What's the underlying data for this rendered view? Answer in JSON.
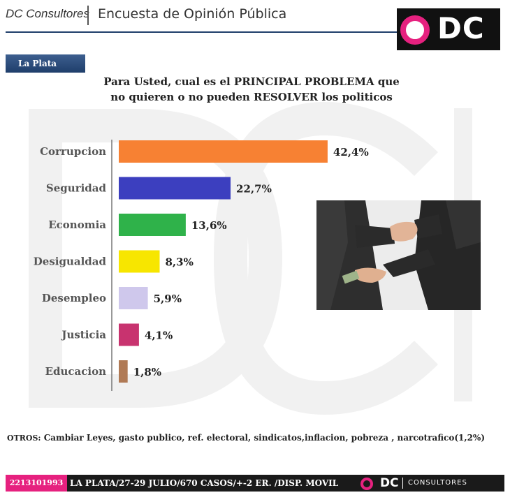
{
  "header": {
    "brand": "DC Consultores",
    "title": "Encuesta de Opinión Pública"
  },
  "logo": {
    "text": "DC"
  },
  "region": "La Plata",
  "question": {
    "line1": "Para Usted, cual es el PRINCIPAL PROBLEMA que",
    "line2": "no quieren o no pueden RESOLVER los politicos"
  },
  "colors": {
    "accent": "#e6217f",
    "navy": "#1f3e6b"
  },
  "chart_data": {
    "type": "bar",
    "orientation": "horizontal",
    "categories": [
      "Corrupcion",
      "Seguridad",
      "Economia",
      "Desigualdad",
      "Desempleo",
      "Justicia",
      "Educacion"
    ],
    "values": [
      42.4,
      22.7,
      13.6,
      8.3,
      5.9,
      4.1,
      1.8
    ],
    "value_labels": [
      "42,4%",
      "22,7%",
      "13,6%",
      "8,3%",
      "5,9%",
      "4,1%",
      "1,8%"
    ],
    "colors": [
      "#f78133",
      "#3c3fbf",
      "#2fb24a",
      "#f7e600",
      "#cfc8ec",
      "#c8336f",
      "#b07a55"
    ],
    "title": "",
    "xlabel": "",
    "ylabel": "",
    "grid": false,
    "legend": "none"
  },
  "others": {
    "label": "OTROS:",
    "text": "Cambiar Leyes, gasto publico, ref. electoral, sindicatos,inflacion, pobreza , narcotrafico(1,2%)"
  },
  "footer": {
    "phone": "2213101993",
    "info": "LA PLATA/27-29 JULIO/670 CASOS/+-2 ER. /DISP. MOVIL",
    "brand": "DC",
    "brand_sub": "CONSULTORES"
  }
}
